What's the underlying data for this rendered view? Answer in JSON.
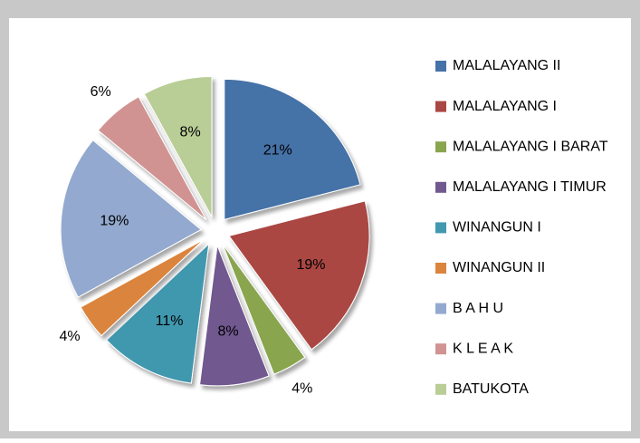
{
  "chart_data": {
    "type": "pie",
    "categories": [
      "MALALAYANG II",
      "MALALAYANG I",
      "MALALAYANG I BARAT",
      "MALALAYANG I TIMUR",
      "WINANGUN I",
      "WINANGUN II",
      "B A H U",
      "K L E A K",
      "BATUKOTA"
    ],
    "values": [
      21,
      19,
      4,
      8,
      11,
      4,
      19,
      6,
      8
    ],
    "value_labels": [
      "21%",
      "19%",
      "4%",
      "8%",
      "11%",
      "4%",
      "19%",
      "6%",
      "8%"
    ],
    "colors": [
      "#4572a7",
      "#aa4643",
      "#89a54e",
      "#71588f",
      "#4198af",
      "#db843d",
      "#93a9cf",
      "#d19392",
      "#b9cd96"
    ],
    "legend": "right"
  }
}
